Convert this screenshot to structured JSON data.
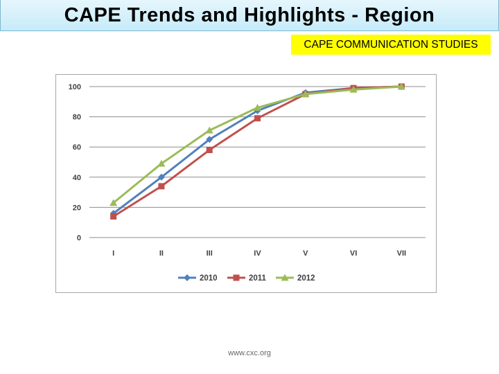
{
  "header": {
    "title": "CAPE Trends and Highlights - Region"
  },
  "subject": {
    "label": "CAPE COMMUNICATION STUDIES"
  },
  "footer": {
    "url": "www.cxc.org"
  },
  "chart_data": {
    "type": "line",
    "title": "",
    "xlabel": "",
    "ylabel": "",
    "categories": [
      "I",
      "II",
      "III",
      "IV",
      "V",
      "VI",
      "VII"
    ],
    "ylim": [
      0,
      100
    ],
    "yticks": [
      "0",
      "20",
      "40",
      "60",
      "80",
      "100"
    ],
    "grid": true,
    "legend_position": "bottom",
    "series": [
      {
        "name": "2010",
        "values": [
          16,
          40,
          65,
          84,
          96,
          99,
          100
        ],
        "color": "#4f81bd",
        "marker": "diamond"
      },
      {
        "name": "2011",
        "values": [
          14,
          34,
          58,
          79,
          95,
          99,
          100
        ],
        "color": "#c0504d",
        "marker": "square"
      },
      {
        "name": "2012",
        "values": [
          23,
          49,
          71,
          86,
          95,
          98,
          100
        ],
        "color": "#9bbb59",
        "marker": "triangle"
      }
    ]
  }
}
